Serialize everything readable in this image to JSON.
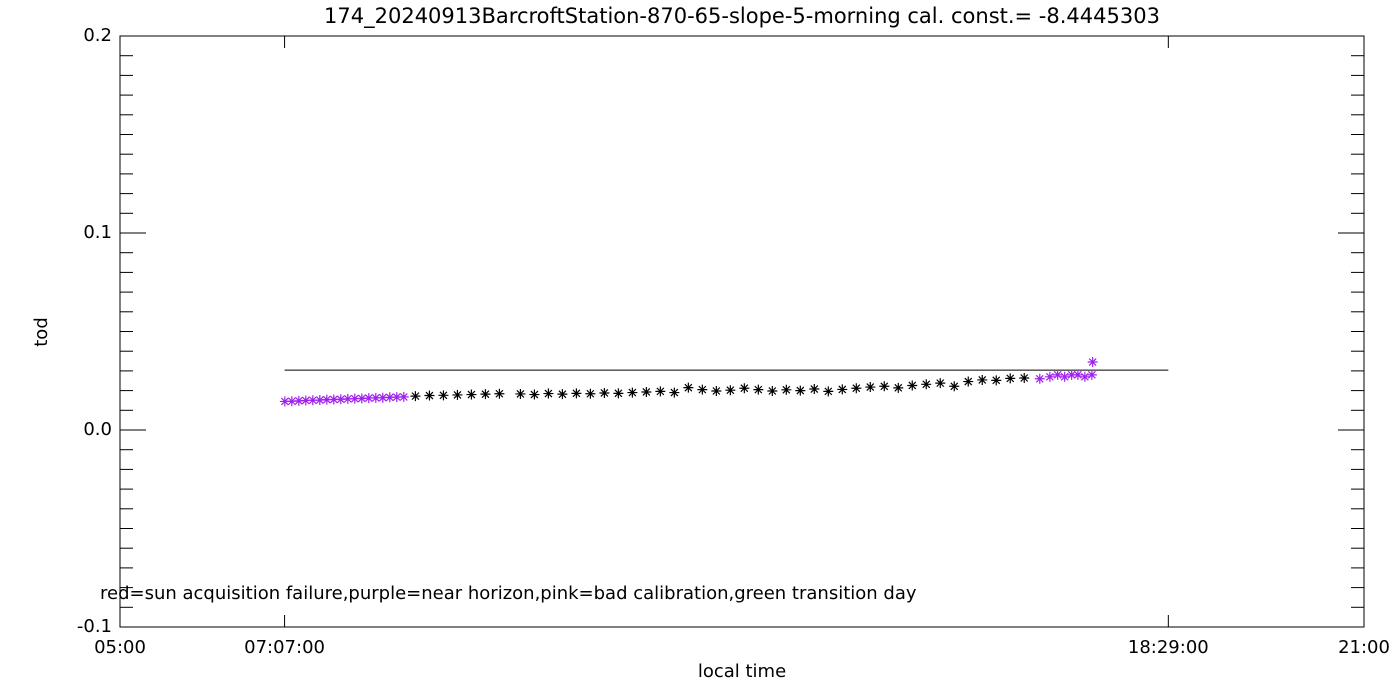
{
  "chart_data": {
    "type": "scatter",
    "title": "174_20240913BarcroftStation-870-65-slope-5-morning cal. const.= -8.4445303",
    "x_label": "local time",
    "y_label": "tod",
    "annotation": "red=sun acquisition failure,purple=near horizon,pink=bad calibration,green transition day",
    "xlim": [
      5,
      21
    ],
    "ylim": [
      -0.1,
      0.2
    ],
    "xticks": [
      {
        "value": 5,
        "label": "05:00"
      },
      {
        "value": 7.1167,
        "label": "07:07:00"
      },
      {
        "value": 18.4833,
        "label": "18:29:00"
      },
      {
        "value": 21,
        "label": "21:00"
      }
    ],
    "yticks": [
      {
        "value": -0.1,
        "label": "-0.1"
      },
      {
        "value": 0.0,
        "label": "0.0"
      },
      0.1,
      0.2
    ],
    "yminorticks": [
      -0.09,
      -0.08,
      -0.07,
      -0.06,
      -0.05,
      -0.04,
      -0.03,
      -0.02,
      -0.01,
      0.01,
      0.02,
      0.03,
      0.04,
      0.05,
      0.06,
      0.07,
      0.08,
      0.09,
      0.11,
      0.12,
      0.13,
      0.14,
      0.15,
      0.16,
      0.17,
      0.18,
      0.19
    ],
    "reference_line": {
      "x": [
        7.1167,
        18.4833
      ],
      "y": 0.0304,
      "color": "#000000"
    },
    "series": [
      {
        "color": "#a020f0",
        "x": [
          7.12,
          7.21,
          7.3,
          7.39,
          7.48,
          7.57,
          7.66,
          7.75,
          7.84,
          7.93,
          8.02,
          8.11,
          8.2,
          8.29,
          8.38,
          8.47,
          8.56,
          8.65
        ],
        "values": [
          0.0145,
          0.0146,
          0.0148,
          0.015,
          0.0151,
          0.0152,
          0.0154,
          0.0155,
          0.0156,
          0.0158,
          0.0159,
          0.016,
          0.0162,
          0.0163,
          0.0164,
          0.0166,
          0.0167,
          0.0168
        ]
      },
      {
        "color": "#000000",
        "x": [
          8.8,
          8.98,
          9.16,
          9.34,
          9.52,
          9.7,
          9.88,
          10.15,
          10.33,
          10.51,
          10.69,
          10.87,
          11.05,
          11.23,
          11.41,
          11.59,
          11.77,
          11.95,
          12.13,
          12.31,
          12.49,
          12.67,
          12.85,
          13.03,
          13.21,
          13.39,
          13.57,
          13.75,
          13.93,
          14.11,
          14.29,
          14.47,
          14.65,
          14.83,
          15.01,
          15.19,
          15.37,
          15.55,
          15.73,
          15.91,
          16.09,
          16.27,
          16.45,
          16.63
        ],
        "values": [
          0.0172,
          0.0175,
          0.0176,
          0.0178,
          0.018,
          0.0182,
          0.0184,
          0.0183,
          0.018,
          0.0185,
          0.0182,
          0.0186,
          0.0184,
          0.0188,
          0.0186,
          0.019,
          0.0193,
          0.0196,
          0.019,
          0.0215,
          0.0205,
          0.0198,
          0.0202,
          0.0212,
          0.0205,
          0.0198,
          0.0204,
          0.02,
          0.0208,
          0.0196,
          0.0206,
          0.0212,
          0.0218,
          0.0222,
          0.0214,
          0.0226,
          0.0232,
          0.0238,
          0.0222,
          0.0246,
          0.0254,
          0.0252,
          0.0262,
          0.0264
        ]
      },
      {
        "color": "#a020f0",
        "x": [
          16.83,
          16.96,
          17.06,
          17.15,
          17.24,
          17.32,
          17.41,
          17.5,
          17.51
        ],
        "values": [
          0.026,
          0.027,
          0.028,
          0.027,
          0.028,
          0.028,
          0.027,
          0.028,
          0.0345
        ]
      }
    ]
  }
}
